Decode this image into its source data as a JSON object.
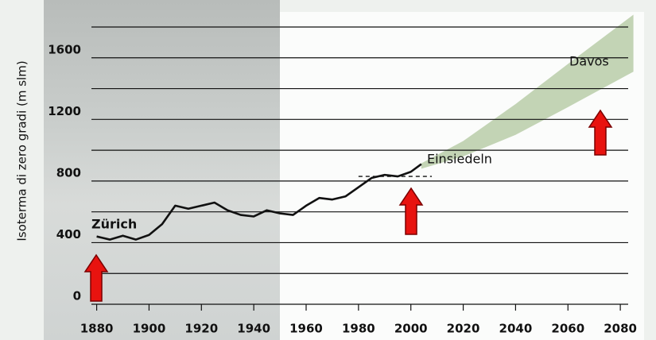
{
  "chart_data": {
    "type": "line",
    "y_label": "Isoterma di zero gradi (m slm)",
    "xlim": [
      1878,
      2083
    ],
    "ylim": [
      0,
      1800
    ],
    "xticks": [
      1880,
      1900,
      1920,
      1940,
      1960,
      1980,
      2000,
      2020,
      2040,
      2060,
      2080
    ],
    "yticks": [
      0,
      400,
      800,
      1200,
      1600
    ],
    "minor_grid": [
      200,
      600,
      1000,
      1400,
      1800
    ],
    "grid": true,
    "series": [
      {
        "color": "#111111",
        "x": [
          1880,
          1885,
          1890,
          1895,
          1900,
          1905,
          1910,
          1915,
          1920,
          1925,
          1930,
          1935,
          1940,
          1945,
          1950,
          1955,
          1960,
          1965,
          1970,
          1975,
          1980,
          1985,
          1990,
          1995,
          2000,
          2004
        ],
        "values": [
          440,
          420,
          445,
          420,
          450,
          520,
          640,
          620,
          640,
          660,
          610,
          580,
          570,
          610,
          590,
          580,
          640,
          690,
          680,
          700,
          760,
          820,
          840,
          830,
          860,
          910
        ]
      }
    ],
    "band": {
      "color": "#b9cca8",
      "x": [
        2004,
        2020,
        2040,
        2060,
        2085
      ],
      "lower": [
        880,
        960,
        1100,
        1280,
        1510
      ],
      "upper": [
        915,
        1060,
        1300,
        1560,
        1880
      ]
    },
    "reference": {
      "x": [
        1980,
        2008
      ],
      "value": 830
    },
    "annotations": [
      {
        "text": "Zürich"
      },
      {
        "text": "Einsiedeln"
      },
      {
        "text": "Davos"
      }
    ]
  }
}
